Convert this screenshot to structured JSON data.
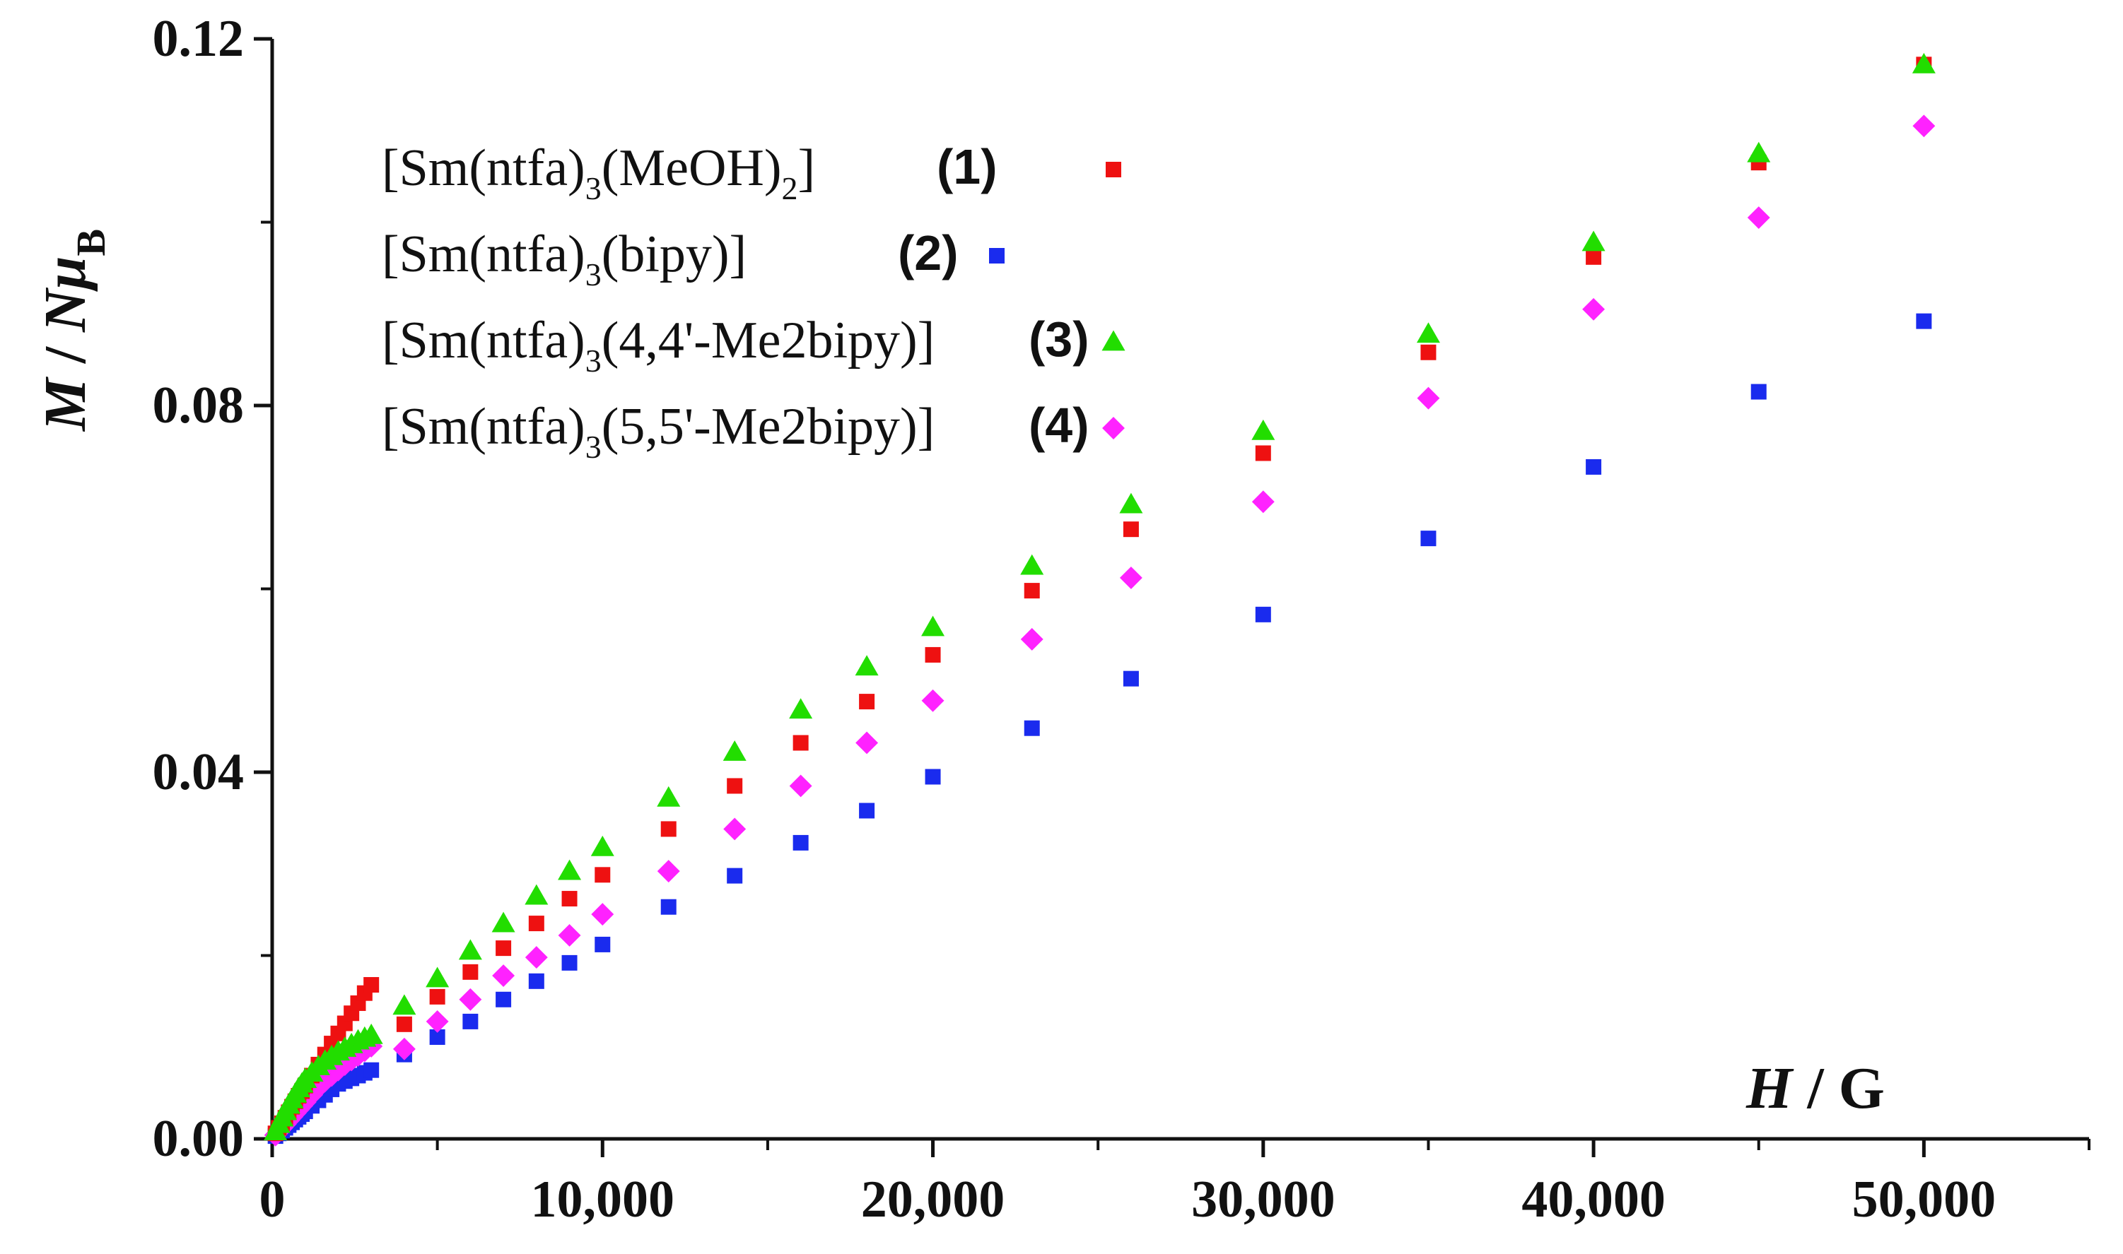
{
  "chart_data": {
    "type": "scatter",
    "title": "",
    "xlabel": {
      "symbol": "H",
      "sep": " / ",
      "unit": "G"
    },
    "ylabel": {
      "symbol": "M",
      "sep": " / ",
      "n": "N",
      "mu": "μ",
      "sub": "B"
    },
    "xlim": [
      0,
      55000
    ],
    "ylim": [
      0,
      0.12
    ],
    "x_ticks": [
      0,
      10000,
      20000,
      30000,
      40000,
      50000
    ],
    "x_tick_labels": [
      "0",
      "10,000",
      "20,000",
      "30,000",
      "40,000",
      "50,000"
    ],
    "y_ticks": [
      0,
      0.04,
      0.08,
      0.12
    ],
    "y_tick_labels": [
      "0.00",
      "0.04",
      "0.08",
      "0.12"
    ],
    "grid": false,
    "legend_position": "top-left",
    "series": [
      {
        "name": "[Sm(ntfa)3(MeOH)2] (1)",
        "legend": {
          "prefix": "[Sm(ntfa)",
          "sub1": "3",
          "mid": "(MeOH)",
          "sub2": "2",
          "suffix": "]",
          "num": "1"
        },
        "marker": "square",
        "color": "#ee1111",
        "x": [
          100,
          200,
          300,
          400,
          500,
          600,
          700,
          800,
          900,
          1000,
          1200,
          1400,
          1600,
          1800,
          2000,
          2200,
          2400,
          2600,
          2800,
          3000,
          4000,
          5000,
          6000,
          7000,
          8000,
          9000,
          10000,
          12000,
          14000,
          16000,
          18000,
          20000,
          23000,
          26000,
          30000,
          35000,
          40000,
          45000,
          50000
        ],
        "y": [
          0.0006,
          0.0012,
          0.0017,
          0.0023,
          0.0029,
          0.0035,
          0.0041,
          0.0047,
          0.0052,
          0.0058,
          0.0069,
          0.0081,
          0.0092,
          0.0104,
          0.0115,
          0.0126,
          0.0137,
          0.0148,
          0.0159,
          0.0168,
          0.0125,
          0.0155,
          0.0182,
          0.0208,
          0.0235,
          0.0262,
          0.0288,
          0.0338,
          0.0385,
          0.0432,
          0.0477,
          0.0528,
          0.0598,
          0.0665,
          0.0748,
          0.0858,
          0.0962,
          0.1065,
          0.1172
        ]
      },
      {
        "name": "[Sm(ntfa)3(bipy)] (2)",
        "legend": {
          "prefix": "[Sm(ntfa)",
          "sub1": "3",
          "mid": "(bipy)]",
          "sub2": "",
          "suffix": "",
          "num": "2"
        },
        "marker": "square",
        "color": "#1a2bee",
        "x": [
          100,
          200,
          300,
          400,
          500,
          600,
          700,
          800,
          900,
          1000,
          1200,
          1400,
          1600,
          1800,
          2000,
          2200,
          2400,
          2600,
          2800,
          3000,
          4000,
          5000,
          6000,
          7000,
          8000,
          9000,
          10000,
          12000,
          14000,
          16000,
          18000,
          20000,
          23000,
          26000,
          30000,
          35000,
          40000,
          45000,
          50000
        ],
        "y": [
          0.0003,
          0.0006,
          0.0009,
          0.0012,
          0.0015,
          0.0018,
          0.0021,
          0.0024,
          0.0027,
          0.003,
          0.0036,
          0.0042,
          0.0048,
          0.0054,
          0.006,
          0.0063,
          0.0066,
          0.0069,
          0.0072,
          0.0075,
          0.0092,
          0.0111,
          0.0128,
          0.0152,
          0.0172,
          0.0192,
          0.0212,
          0.0253,
          0.0287,
          0.0323,
          0.0358,
          0.0395,
          0.0448,
          0.0502,
          0.0572,
          0.0655,
          0.0733,
          0.0815,
          0.0892
        ]
      },
      {
        "name": "[Sm(ntfa)3(4,4'-Me2bipy)] (3)",
        "legend": {
          "prefix": "[Sm(ntfa)",
          "sub1": "3",
          "mid": "(4,4'-Me2bipy)]",
          "sub2": "",
          "suffix": "",
          "num": "3"
        },
        "marker": "triangle",
        "color": "#22dd00",
        "x": [
          100,
          200,
          300,
          400,
          500,
          600,
          700,
          800,
          900,
          1000,
          1200,
          1400,
          1600,
          1800,
          2000,
          2200,
          2400,
          2600,
          2800,
          3000,
          4000,
          5000,
          6000,
          7000,
          8000,
          9000,
          10000,
          12000,
          14000,
          16000,
          18000,
          20000,
          23000,
          26000,
          30000,
          35000,
          40000,
          45000,
          50000
        ],
        "y": [
          0.0008,
          0.0016,
          0.0023,
          0.003,
          0.0037,
          0.0043,
          0.0049,
          0.0055,
          0.006,
          0.0065,
          0.0072,
          0.0079,
          0.0085,
          0.009,
          0.0095,
          0.0099,
          0.0103,
          0.0107,
          0.011,
          0.0113,
          0.0145,
          0.0175,
          0.0205,
          0.0235,
          0.0265,
          0.0292,
          0.0318,
          0.0372,
          0.0422,
          0.0468,
          0.0515,
          0.0558,
          0.0625,
          0.0692,
          0.0772,
          0.0878,
          0.0978,
          0.1075,
          0.1172
        ]
      },
      {
        "name": "[Sm(ntfa)3(5,5'-Me2bipy)] (4)",
        "legend": {
          "prefix": "[Sm(ntfa)",
          "sub1": "3",
          "mid": "(5,5'-Me2bipy)]",
          "sub2": "",
          "suffix": "",
          "num": "4"
        },
        "marker": "diamond",
        "color": "#ff22ff",
        "x": [
          100,
          200,
          300,
          400,
          500,
          600,
          700,
          800,
          900,
          1000,
          1200,
          1400,
          1600,
          1800,
          2000,
          2200,
          2400,
          2600,
          2800,
          3000,
          4000,
          5000,
          6000,
          7000,
          8000,
          9000,
          10000,
          12000,
          14000,
          16000,
          18000,
          20000,
          23000,
          26000,
          30000,
          35000,
          40000,
          45000,
          50000
        ],
        "y": [
          0.0004,
          0.0008,
          0.0012,
          0.0016,
          0.002,
          0.0024,
          0.0028,
          0.0032,
          0.0036,
          0.004,
          0.0048,
          0.0056,
          0.0063,
          0.0069,
          0.0075,
          0.0081,
          0.0086,
          0.0091,
          0.0096,
          0.0101,
          0.0098,
          0.0128,
          0.0152,
          0.0178,
          0.0198,
          0.0222,
          0.0245,
          0.0292,
          0.0338,
          0.0385,
          0.0432,
          0.0478,
          0.0545,
          0.0612,
          0.0695,
          0.0808,
          0.0905,
          0.1005,
          0.1105
        ]
      }
    ]
  }
}
